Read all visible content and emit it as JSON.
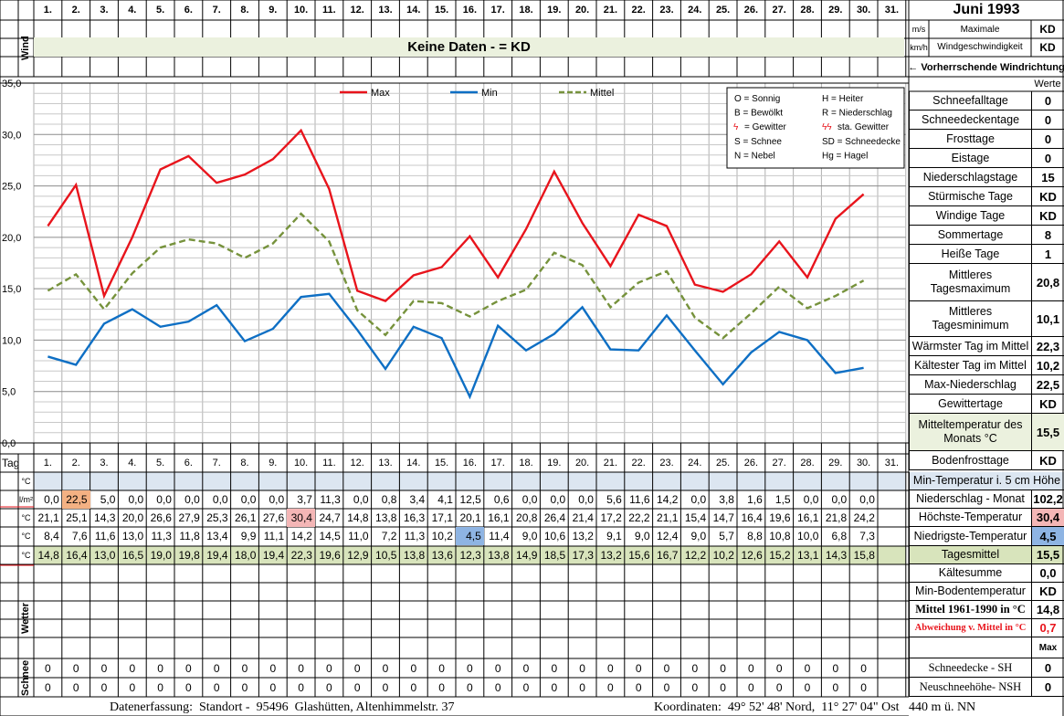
{
  "header": {
    "title": "Juni 1993",
    "days": [
      "1.",
      "2.",
      "3.",
      "4.",
      "5.",
      "6.",
      "7.",
      "8.",
      "9.",
      "10.",
      "11.",
      "12.",
      "13.",
      "14.",
      "15.",
      "16.",
      "17.",
      "18.",
      "19.",
      "20.",
      "21.",
      "22.",
      "23.",
      "24.",
      "25.",
      "26.",
      "27.",
      "28.",
      "29.",
      "30.",
      "31."
    ],
    "wind_label": "Wind",
    "unit_ms": "m/s",
    "unit_kmh": "km/h",
    "max_wind_label": "Maximale Windgeschwindigkeit",
    "max_wind_ms": "KD",
    "max_wind_kmh": "KD",
    "no_data_banner": "Keine Daten -  = KD",
    "wind_direction_label": "← Vorherrschende Windrichtung"
  },
  "chart_data": {
    "type": "line",
    "x": [
      1,
      2,
      3,
      4,
      5,
      6,
      7,
      8,
      9,
      10,
      11,
      12,
      13,
      14,
      15,
      16,
      17,
      18,
      19,
      20,
      21,
      22,
      23,
      24,
      25,
      26,
      27,
      28,
      29,
      30
    ],
    "ylim": [
      0,
      35
    ],
    "yticks": [
      "0,0",
      "5,0",
      "10,0",
      "15,0",
      "20,0",
      "25,0",
      "30,0",
      "35,0"
    ],
    "grid": true,
    "legend_position": "top",
    "series": [
      {
        "name": "Max",
        "color": "#e8141c",
        "dash": "solid",
        "values": [
          21.1,
          25.1,
          14.3,
          20.0,
          26.6,
          27.9,
          25.3,
          26.1,
          27.6,
          30.4,
          24.7,
          14.8,
          13.8,
          16.3,
          17.1,
          20.1,
          16.1,
          20.8,
          26.4,
          21.4,
          17.2,
          22.2,
          21.1,
          15.4,
          14.7,
          16.4,
          19.6,
          16.1,
          21.8,
          24.2
        ]
      },
      {
        "name": "Min",
        "color": "#0e6fc4",
        "dash": "solid",
        "values": [
          8.4,
          7.6,
          11.6,
          13.0,
          11.3,
          11.8,
          13.4,
          9.9,
          11.1,
          14.2,
          14.5,
          11.0,
          7.2,
          11.3,
          10.2,
          4.5,
          11.4,
          9.0,
          10.6,
          13.2,
          9.1,
          9.0,
          12.4,
          9.0,
          5.7,
          8.8,
          10.8,
          10.0,
          6.8,
          7.3
        ]
      },
      {
        "name": "Mittel",
        "color": "#76923c",
        "dash": "dashed",
        "values": [
          14.8,
          16.4,
          13.0,
          16.5,
          19.0,
          19.8,
          19.4,
          18.0,
          19.4,
          22.3,
          19.6,
          12.9,
          10.5,
          13.8,
          13.6,
          12.3,
          13.8,
          14.9,
          18.5,
          17.3,
          13.2,
          15.6,
          16.7,
          12.2,
          10.2,
          12.6,
          15.2,
          13.1,
          14.3,
          15.8
        ]
      }
    ]
  },
  "legend_box": {
    "rows": [
      [
        "O = Sonnig",
        "H = Heiter"
      ],
      [
        "B = Bewölkt",
        "R = Niederschlag"
      ],
      [
        "= Gewitter",
        "sta. Gewitter"
      ],
      [
        "S = Schnee",
        "SD = Schneedecke"
      ],
      [
        "N = Nebel",
        "Hg = Hagel"
      ]
    ]
  },
  "table": {
    "tag_label": "Tag",
    "unit_c": "°C",
    "unit_lm2": "l/m²",
    "wetter_label": "Wetter",
    "schnee_label": "Schnee",
    "precip": [
      "0,0",
      "22,5",
      "5,0",
      "0,0",
      "0,0",
      "0,0",
      "0,0",
      "0,0",
      "0,0",
      "3,7",
      "11,3",
      "0,0",
      "0,8",
      "3,4",
      "4,1",
      "12,5",
      "0,6",
      "0,0",
      "0,0",
      "0,0",
      "5,6",
      "11,6",
      "14,2",
      "0,0",
      "3,8",
      "1,6",
      "1,5",
      "0,0",
      "0,0",
      "0,0"
    ],
    "max": [
      "21,1",
      "25,1",
      "14,3",
      "20,0",
      "26,6",
      "27,9",
      "25,3",
      "26,1",
      "27,6",
      "30,4",
      "24,7",
      "14,8",
      "13,8",
      "16,3",
      "17,1",
      "20,1",
      "16,1",
      "20,8",
      "26,4",
      "21,4",
      "17,2",
      "22,2",
      "21,1",
      "15,4",
      "14,7",
      "16,4",
      "19,6",
      "16,1",
      "21,8",
      "24,2"
    ],
    "min": [
      "8,4",
      "7,6",
      "11,6",
      "13,0",
      "11,3",
      "11,8",
      "13,4",
      "9,9",
      "11,1",
      "14,2",
      "14,5",
      "11,0",
      "7,2",
      "11,3",
      "10,2",
      "4,5",
      "11,4",
      "9,0",
      "10,6",
      "13,2",
      "9,1",
      "9,0",
      "12,4",
      "9,0",
      "5,7",
      "8,8",
      "10,8",
      "10,0",
      "6,8",
      "7,3"
    ],
    "mean": [
      "14,8",
      "16,4",
      "13,0",
      "16,5",
      "19,0",
      "19,8",
      "19,4",
      "18,0",
      "19,4",
      "22,3",
      "19,6",
      "12,9",
      "10,5",
      "13,8",
      "13,6",
      "12,3",
      "13,8",
      "14,9",
      "18,5",
      "17,3",
      "13,2",
      "15,6",
      "16,7",
      "12,2",
      "10,2",
      "12,6",
      "15,2",
      "13,1",
      "14,3",
      "15,8"
    ],
    "snow1": [
      "0",
      "0",
      "0",
      "0",
      "0",
      "0",
      "0",
      "0",
      "0",
      "0",
      "0",
      "0",
      "0",
      "0",
      "0",
      "0",
      "0",
      "0",
      "0",
      "0",
      "0",
      "0",
      "0",
      "0",
      "0",
      "0",
      "0",
      "0",
      "0",
      "0"
    ],
    "snow2": [
      "0",
      "0",
      "0",
      "0",
      "0",
      "0",
      "0",
      "0",
      "0",
      "0",
      "0",
      "0",
      "0",
      "0",
      "0",
      "0",
      "0",
      "0",
      "0",
      "0",
      "0",
      "0",
      "0",
      "0",
      "0",
      "0",
      "0",
      "0",
      "0",
      "0"
    ],
    "highlights": {
      "precip_max_color": "#f4b183",
      "max_max_color": "#f4b6b6",
      "min_min_color": "#8eb4e3",
      "min_temp_row_color": "#dce6f1",
      "mean_row_color": "#d8e4bc"
    }
  },
  "stats": {
    "werte_label": "Werte",
    "items": [
      {
        "label": "Schneefalltage",
        "value": "0"
      },
      {
        "label": "Schneedeckentage",
        "value": "0"
      },
      {
        "label": "Frosttage",
        "value": "0"
      },
      {
        "label": "Eistage",
        "value": "0"
      },
      {
        "label": "Niederschlagstage",
        "value": "15"
      },
      {
        "label": "Stürmische Tage",
        "value": "KD"
      },
      {
        "label": "Windige Tage",
        "value": "KD"
      },
      {
        "label": "Sommertage",
        "value": "8"
      },
      {
        "label": "Heiße Tage",
        "value": "1"
      },
      {
        "label": "Mittleres Tagesmaximum",
        "value": "20,8"
      },
      {
        "label": "Mittleres Tagesminimum",
        "value": "10,1"
      },
      {
        "label": "Wärmster Tag im Mittel",
        "value": "22,3"
      },
      {
        "label": "Kältester Tag im Mittel",
        "value": "10,2"
      },
      {
        "label": "Max-Niederschlag",
        "value": "22,5"
      },
      {
        "label": "Gewittertage",
        "value": "KD"
      },
      {
        "label": "Mitteltemperatur des Monats °C",
        "value": "15,5"
      },
      {
        "label": "Bodenfrosttage",
        "value": "KD"
      }
    ],
    "lower": [
      {
        "label": "Min-Temperatur i. 5 cm Höhe",
        "value": ""
      },
      {
        "label": "Niederschlag - Monat",
        "value": "102,2"
      },
      {
        "label": "Höchste-Temperatur",
        "value": "30,4"
      },
      {
        "label": "Niedrigste-Temperatur",
        "value": "4,5"
      },
      {
        "label": "Tagesmittel",
        "value": "15,5"
      },
      {
        "label": "Kältesumme",
        "value": "0,0"
      },
      {
        "label": "Min-Bodentemperatur",
        "value": "KD"
      },
      {
        "label": "Mittel 1961-1990 in °C",
        "value": "14,8"
      },
      {
        "label": "Abweichung v. Mittel in °C",
        "value": "0,7"
      },
      {
        "label": "",
        "value": "Max"
      },
      {
        "label": "Schneedecke -   SH",
        "value": "0"
      },
      {
        "label": "Neuschneehöhe- NSH",
        "value": "0"
      }
    ]
  },
  "footer": {
    "left": "Datenerfassung:  Standort -  95496  Glashütten, Altenhimmelstr. 37",
    "right": "Koordinaten:  49° 52' 48' Nord,  11° 27' 04\" Ost   440 m ü. NN"
  }
}
